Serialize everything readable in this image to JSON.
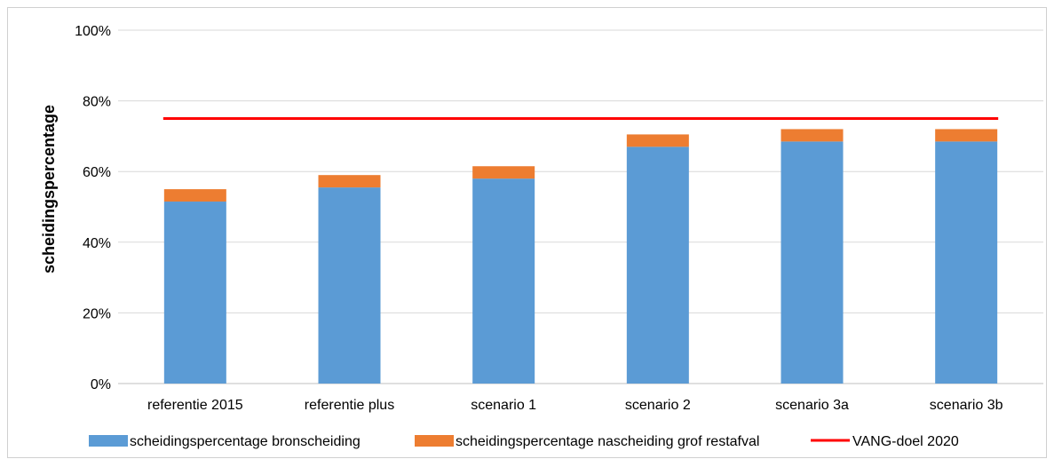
{
  "chart_data": {
    "type": "bar",
    "stacked": true,
    "ylabel": "scheidingspercentage",
    "xlabel": "",
    "ylim": [
      0,
      100
    ],
    "yticks": [
      "0%",
      "20%",
      "40%",
      "60%",
      "80%",
      "100%"
    ],
    "grid": true,
    "legend_position": "bottom",
    "categories": [
      "referentie 2015",
      "referentie plus",
      "scenario 1",
      "scenario 2",
      "scenario 3a",
      "scenario 3b"
    ],
    "series": [
      {
        "name": "scheidingspercentage bronscheiding",
        "color": "#5b9bd5",
        "values": [
          51.5,
          55.5,
          58,
          67,
          68.5,
          68.5
        ]
      },
      {
        "name": "scheidingspercentage nascheiding grof restafval",
        "color": "#ed7d31",
        "values": [
          3.5,
          3.5,
          3.5,
          3.5,
          3.5,
          3.5
        ]
      }
    ],
    "target_line": {
      "name": "VANG-doel 2020",
      "color": "#ff0000",
      "value": 75
    }
  }
}
